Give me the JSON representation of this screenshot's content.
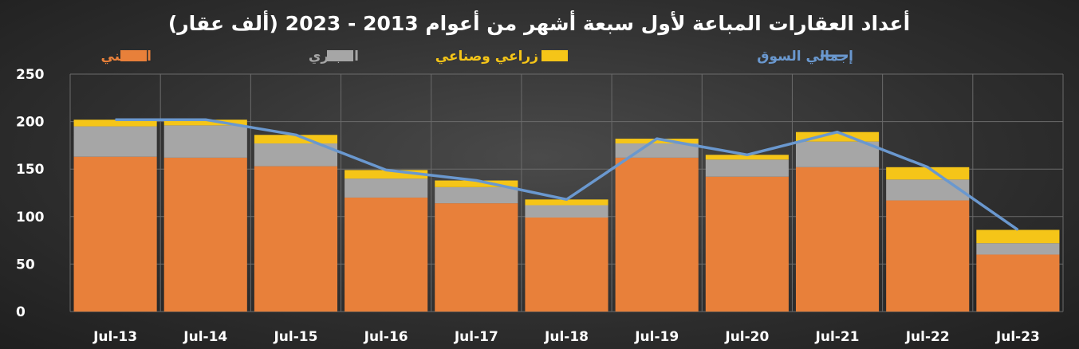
{
  "chart_data": {
    "type": "bar",
    "title": "أعداد العقارات المباعة لأول سبعة أشهر من أعوام 2013 - 2023 (ألف عقار)",
    "categories": [
      "Jul-13",
      "Jul-14",
      "Jul-15",
      "Jul-16",
      "Jul-17",
      "Jul-18",
      "Jul-19",
      "Jul-20",
      "Jul-21",
      "Jul-22",
      "Jul-23"
    ],
    "ylim": [
      0,
      250
    ],
    "yticks": [
      "0",
      "50",
      "100",
      "150",
      "200",
      "250"
    ],
    "grid": true,
    "legend_position": "top",
    "series": [
      {
        "name": "السكني",
        "color": "#e8803a",
        "values": [
          163,
          162,
          153,
          120,
          114,
          99,
          162,
          142,
          152,
          117,
          60
        ]
      },
      {
        "name": "التجاري",
        "color": "#a6a6a6",
        "values": [
          32,
          34,
          24,
          20,
          17,
          13,
          15,
          18,
          27,
          22,
          12
        ]
      },
      {
        "name": "زراعي وصناعي",
        "color": "#f5c518",
        "values": [
          7,
          6,
          9,
          9,
          7,
          6,
          5,
          5,
          10,
          13,
          14
        ]
      }
    ],
    "line": {
      "name": "إجمالي السوق",
      "color": "#6a98cf",
      "values": [
        202,
        202,
        186,
        149,
        138,
        118,
        182,
        165,
        189,
        152,
        86
      ]
    }
  },
  "legend": [
    {
      "key": "residential",
      "label": "السكني",
      "color": "#e8803a",
      "kind": "bar"
    },
    {
      "key": "commercial",
      "label": "التجاري",
      "color": "#a6a6a6",
      "kind": "bar"
    },
    {
      "key": "agri",
      "label": "زراعي وصناعي",
      "color": "#f5c518",
      "kind": "bar"
    },
    {
      "key": "total",
      "label": "إجمالي السوق",
      "color": "#6a98cf",
      "kind": "line"
    }
  ]
}
